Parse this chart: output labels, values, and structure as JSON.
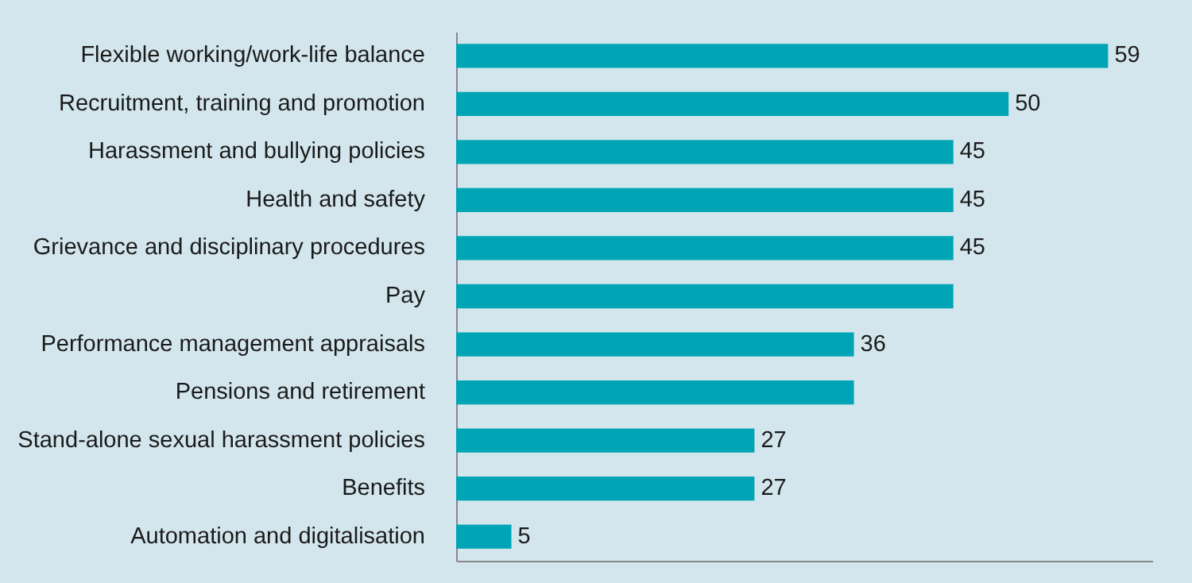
{
  "chart_data": {
    "type": "bar",
    "orientation": "horizontal",
    "categories": [
      "Flexible working/work-life balance",
      "Recruitment, training and promotion",
      "Harassment and bullying policies",
      "Health and safety",
      "Grievance and disciplinary procedures",
      "Pay",
      "Performance management appraisals",
      "Pensions and retirement",
      "Stand-alone sexual harassment policies",
      "Benefits",
      "Automation and digitalisation"
    ],
    "values": [
      59,
      50,
      45,
      45,
      45,
      45,
      36,
      36,
      27,
      27,
      5
    ],
    "value_labels": [
      "59",
      "50",
      "45",
      "45",
      "45",
      null,
      "36",
      null,
      "27",
      "27",
      "5"
    ],
    "color": "#00a5b5",
    "xlim": [
      0,
      63
    ],
    "tick_labels": "y"
  }
}
